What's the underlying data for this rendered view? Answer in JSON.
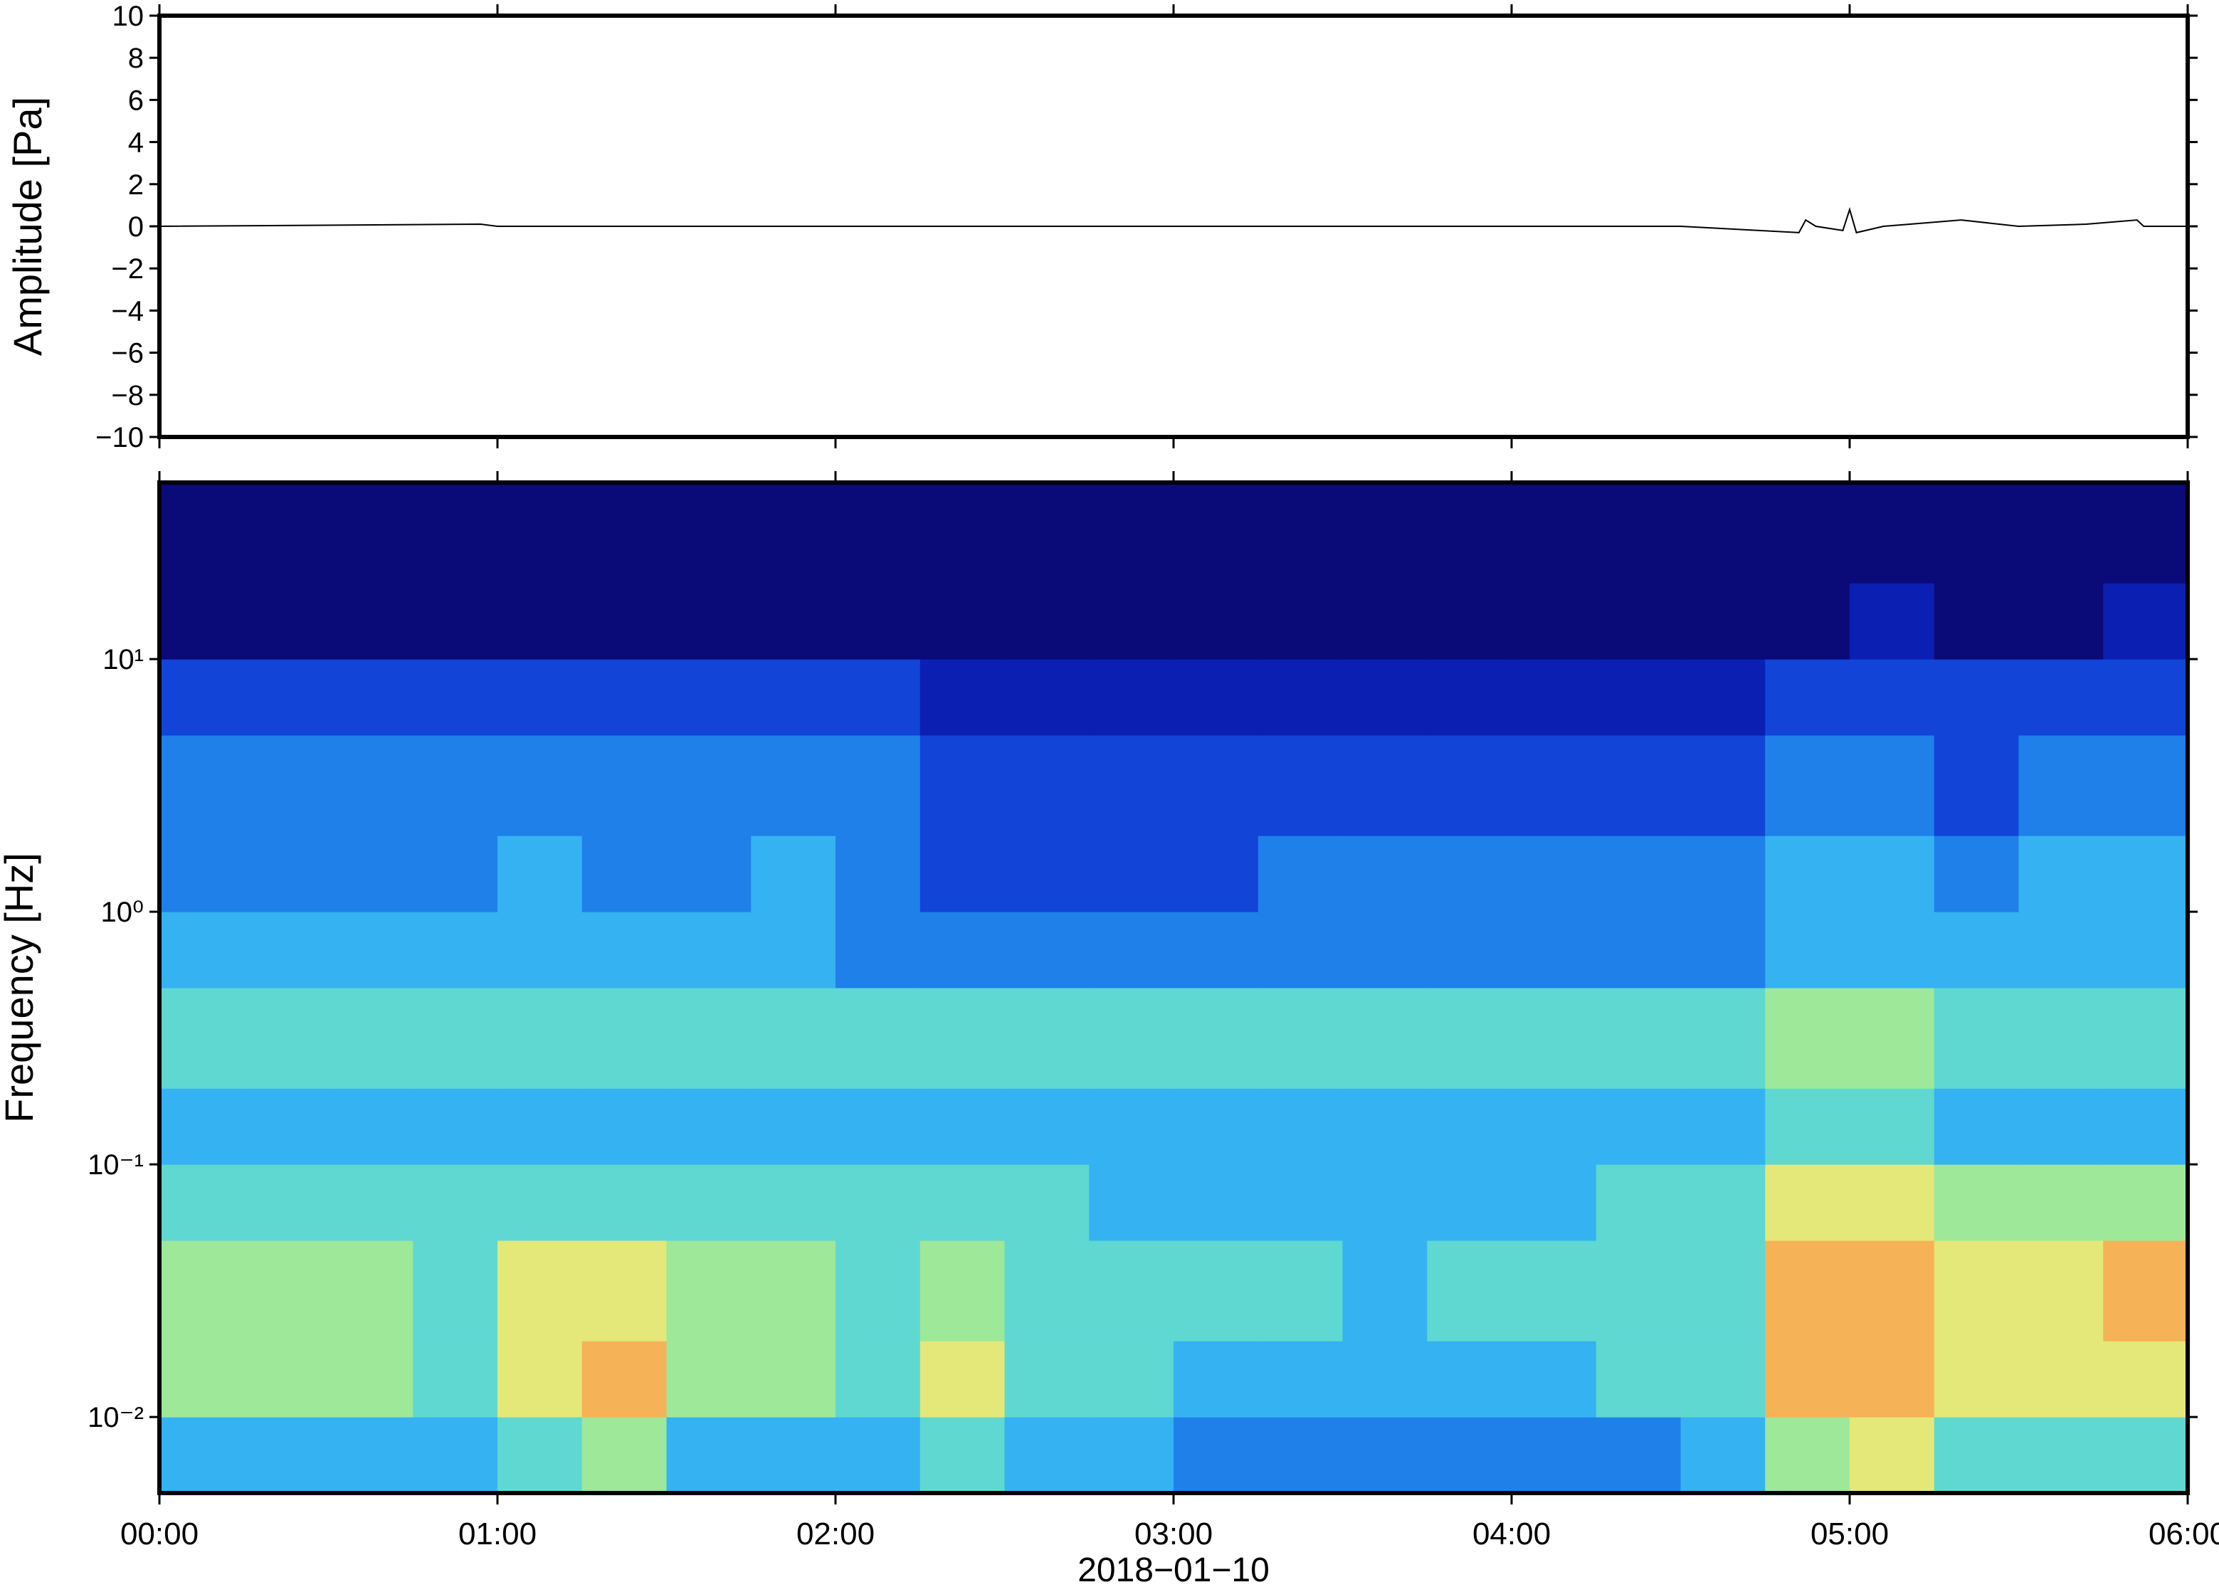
{
  "chart_data": [
    {
      "type": "line",
      "ylabel": "Amplitude [Pa]",
      "x": [
        0,
        0.95,
        1.0,
        1.8,
        2.5,
        3.5,
        4.5,
        4.85,
        4.87,
        4.9,
        4.98,
        5.0,
        5.02,
        5.1,
        5.33,
        5.5,
        5.7,
        5.85,
        5.87,
        6.0
      ],
      "values": [
        0,
        0.1,
        0,
        0,
        0,
        0,
        0,
        -0.3,
        0.3,
        0,
        -0.2,
        0.8,
        -0.3,
        0,
        0.3,
        0,
        0.1,
        0.3,
        0,
        0
      ],
      "color": "#000000",
      "xlim": [
        0,
        6
      ],
      "ylim": [
        -10,
        10
      ],
      "yticks": [
        {
          "value": -10,
          "label": "−10"
        },
        {
          "value": -8,
          "label": "−8"
        },
        {
          "value": -6,
          "label": "−6"
        },
        {
          "value": -4,
          "label": "−4"
        },
        {
          "value": -2,
          "label": "−2"
        },
        0,
        2,
        4,
        6,
        8,
        10
      ]
    },
    {
      "type": "heatmap",
      "ylabel": "Frequency [Hz]",
      "xlabel": "2018−01−10",
      "log_y": true,
      "xlim": [
        0,
        6
      ],
      "ylim": [
        0.005,
        50
      ],
      "xticks": [
        {
          "value": 0,
          "label": "00:00"
        },
        {
          "value": 1,
          "label": "01:00"
        },
        {
          "value": 2,
          "label": "02:00"
        },
        {
          "value": 3,
          "label": "03:00"
        },
        {
          "value": 4,
          "label": "04:00"
        },
        {
          "value": 5,
          "label": "05:00"
        },
        {
          "value": 6,
          "label": "06:00"
        }
      ],
      "yticks": [
        {
          "value": 0.01,
          "label": "10⁻²"
        },
        {
          "value": 0.1,
          "label": "10⁻¹"
        },
        {
          "value": 1,
          "label": "10⁰"
        },
        {
          "value": 10,
          "label": "10¹"
        }
      ],
      "xbins": [
        0,
        0.25,
        0.5,
        0.75,
        1,
        1.25,
        1.5,
        1.75,
        2,
        2.25,
        2.5,
        2.75,
        3,
        3.25,
        3.5,
        3.75,
        4,
        4.25,
        4.5,
        4.75,
        5,
        5.25,
        5.5,
        5.75,
        6
      ],
      "ybins": [
        0.005,
        0.01,
        0.02,
        0.05,
        0.1,
        0.2,
        0.5,
        1,
        2,
        5,
        10,
        20,
        50
      ],
      "zlim": [
        0,
        10
      ],
      "colormap": [
        "#0a0a78",
        "#0b1fb2",
        "#1244d8",
        "#1f80ea",
        "#35b2f2",
        "#5fd8d2",
        "#9ee89a",
        "#e4e878",
        "#f6b256",
        "#ef7c3a",
        "#d03020"
      ],
      "z": [
        [
          4,
          4,
          4,
          4,
          5,
          6,
          4,
          4,
          4,
          5,
          4,
          4,
          3,
          3,
          3,
          3,
          3,
          3,
          4,
          6,
          7,
          5,
          5,
          5
        ],
        [
          6,
          6,
          6,
          5,
          7,
          8,
          6,
          6,
          5,
          7,
          5,
          5,
          4,
          4,
          4,
          4,
          4,
          5,
          5,
          8,
          8,
          7,
          7,
          7
        ],
        [
          6,
          6,
          6,
          5,
          7,
          7,
          6,
          6,
          5,
          6,
          5,
          5,
          5,
          5,
          4,
          5,
          5,
          5,
          5,
          8,
          8,
          7,
          7,
          8
        ],
        [
          5,
          5,
          5,
          5,
          5,
          5,
          5,
          5,
          5,
          5,
          5,
          4,
          4,
          4,
          4,
          4,
          4,
          5,
          5,
          7,
          7,
          6,
          6,
          6
        ],
        [
          4,
          4,
          4,
          4,
          4,
          4,
          4,
          4,
          4,
          4,
          4,
          4,
          4,
          4,
          4,
          4,
          4,
          4,
          4,
          5,
          5,
          4,
          4,
          4
        ],
        [
          5,
          5,
          5,
          5,
          5,
          5,
          5,
          5,
          5,
          5,
          5,
          5,
          5,
          5,
          5,
          5,
          5,
          5,
          5,
          6,
          6,
          5,
          5,
          5
        ],
        [
          4,
          4,
          4,
          4,
          4,
          4,
          4,
          4,
          3,
          3,
          3,
          3,
          3,
          3,
          3,
          3,
          3,
          3,
          3,
          4,
          4,
          4,
          4,
          4
        ],
        [
          3,
          3,
          3,
          3,
          4,
          3,
          3,
          4,
          3,
          2,
          2,
          2,
          2,
          3,
          3,
          3,
          3,
          3,
          3,
          4,
          4,
          3,
          4,
          4
        ],
        [
          3,
          3,
          3,
          3,
          3,
          3,
          3,
          3,
          3,
          2,
          2,
          2,
          2,
          2,
          2,
          2,
          2,
          2,
          2,
          3,
          3,
          2,
          3,
          3
        ],
        [
          2,
          2,
          2,
          2,
          2,
          2,
          2,
          2,
          2,
          1,
          1,
          1,
          1,
          1,
          1,
          1,
          1,
          1,
          1,
          2,
          2,
          2,
          2,
          2
        ],
        [
          0,
          0,
          0,
          0,
          0,
          0,
          0,
          0,
          0,
          0,
          0,
          0,
          0,
          0,
          0,
          0,
          0,
          0,
          0,
          0,
          1,
          0,
          0,
          1
        ],
        [
          0,
          0,
          0,
          0,
          0,
          0,
          0,
          0,
          0,
          0,
          0,
          0,
          0,
          0,
          0,
          0,
          0,
          0,
          0,
          0,
          0,
          0,
          0,
          0
        ]
      ]
    }
  ]
}
